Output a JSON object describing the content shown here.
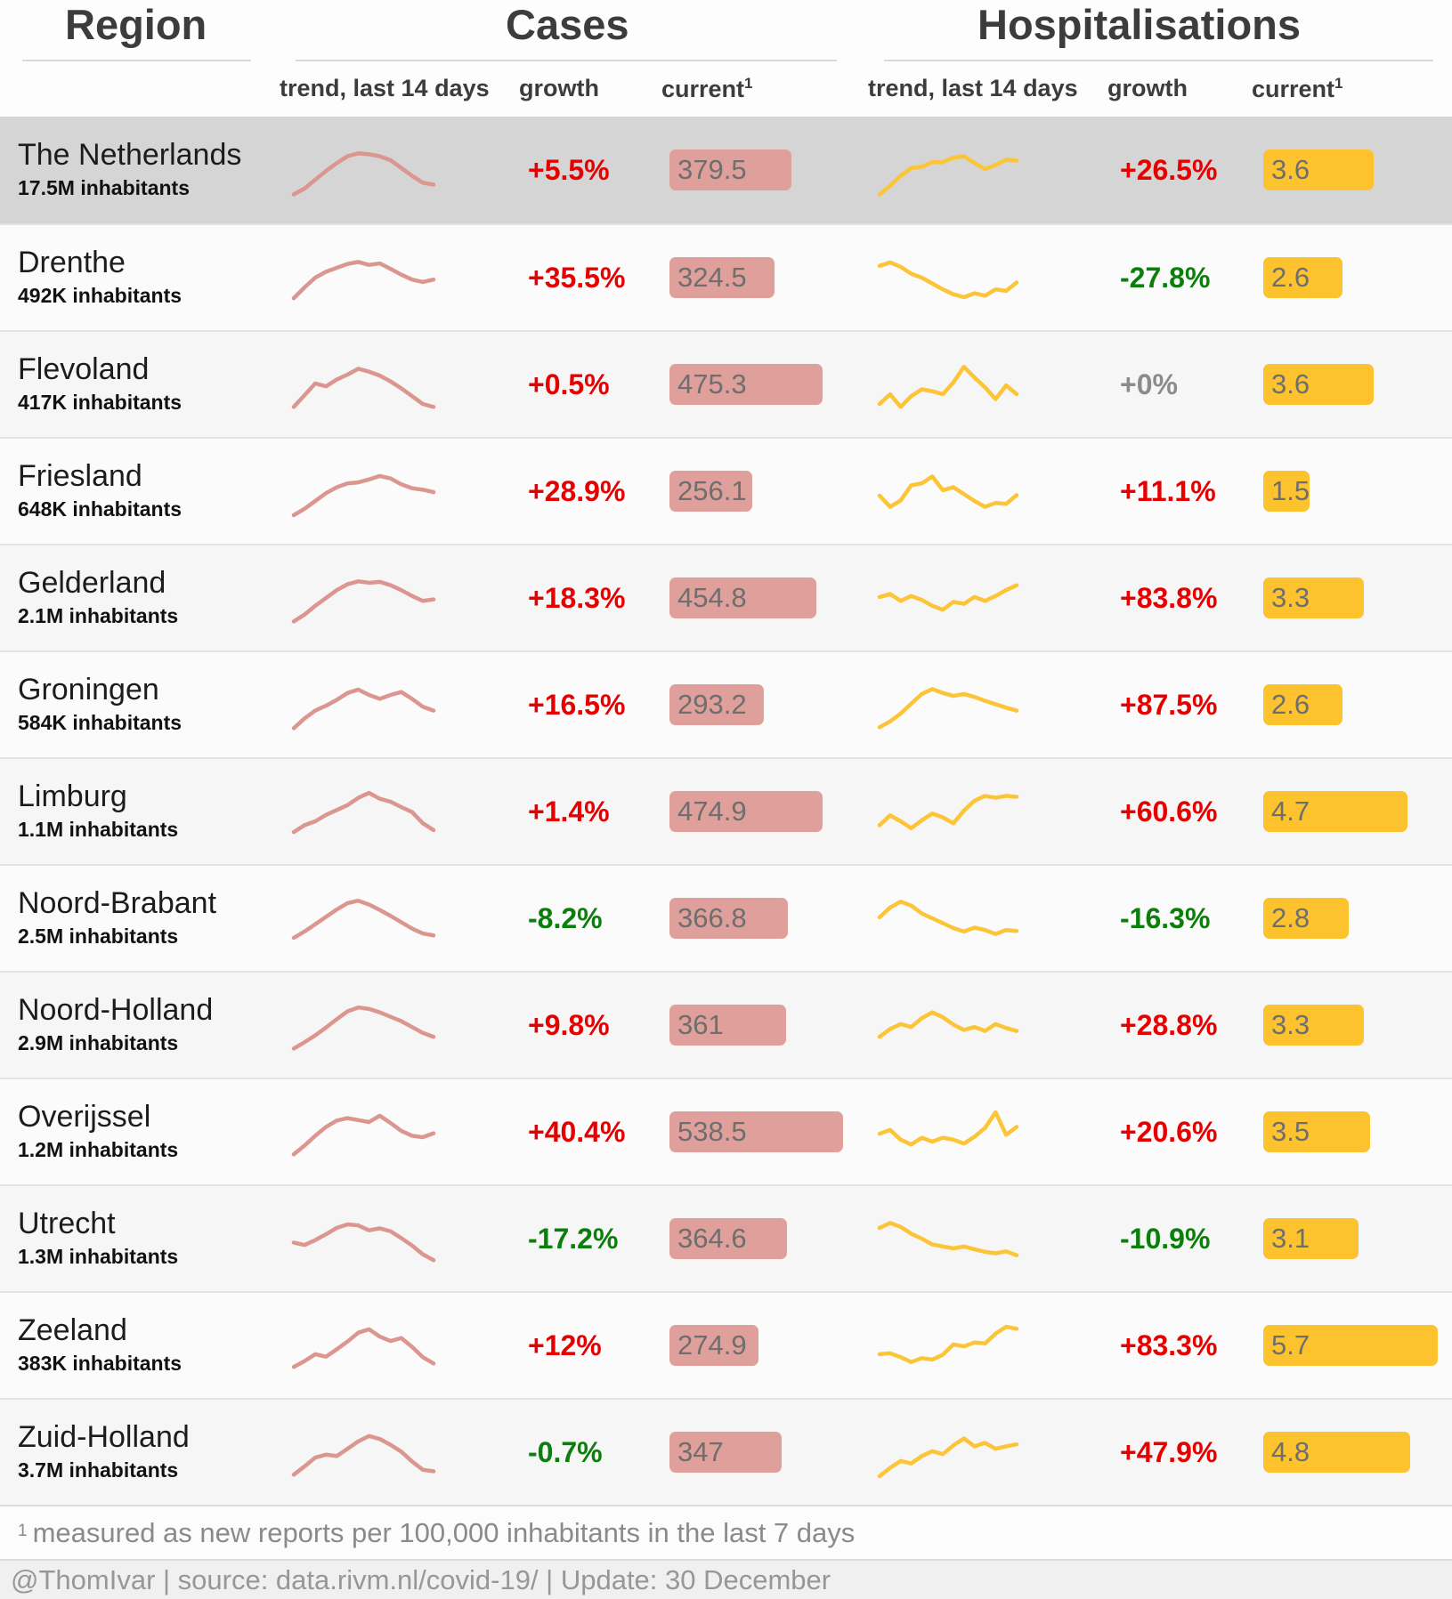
{
  "header": {
    "region_title": "Region",
    "cases_title": "Cases",
    "hosp_title": "Hospitalisations",
    "sub": {
      "trend": "trend, last 14 days",
      "growth": "growth",
      "current": "current",
      "current_sup": "1"
    }
  },
  "footnote": {
    "sup": "1",
    "text": "measured as new reports per 100,000 inhabitants in the last 7 days"
  },
  "credit": "@ThomIvar | source: data.rivm.nl/covid-19/ | Update: 30 December",
  "colors": {
    "cases_accent": "#db968f",
    "cases_bar": "#dfa09b",
    "hosp_accent": "#fcc437",
    "hosp_bar": "#fcc32e",
    "growth_up": "#e70000",
    "growth_down": "#0b7e0b",
    "growth_flat": "#8b8b8b",
    "highlight_row": "#d5d5d5"
  },
  "chart_data": {
    "type": "table",
    "sections": [
      "Region",
      "Cases",
      "Hospitalisations"
    ],
    "columns": [
      "region",
      "inhabitants",
      "cases trend last 14 days",
      "cases growth",
      "cases current (per 100,000, last 7 days)",
      "hospitalisations trend last 14 days",
      "hospitalisations growth",
      "hospitalisations current (per 100,000, last 7 days)"
    ],
    "sparkline_note": "14 daily points per trend, values normalized 0-100",
    "rows": [
      {
        "region": "The Netherlands",
        "inhabitants": "17.5M inhabitants",
        "highlight": true,
        "cases_growth": "+5.5%",
        "cases_growth_color": "red",
        "cases_current": "379.5",
        "hosp_growth": "+26.5%",
        "hosp_growth_color": "red",
        "hosp_current": "3.6",
        "cases_spark": [
          4,
          16,
          34,
          52,
          68,
          82,
          88,
          86,
          82,
          74,
          58,
          42,
          28,
          24
        ],
        "hosp_spark": [
          4,
          22,
          42,
          58,
          60,
          70,
          70,
          79,
          82,
          68,
          56,
          64,
          75,
          73
        ]
      },
      {
        "region": "Drenthe",
        "inhabitants": "492K inhabitants",
        "highlight": false,
        "cases_growth": "+35.5%",
        "cases_growth_color": "red",
        "cases_current": "324.5",
        "hosp_growth": "-27.8%",
        "hosp_growth_color": "green",
        "hosp_current": "2.6",
        "cases_spark": [
          12,
          34,
          54,
          66,
          74,
          82,
          86,
          80,
          83,
          72,
          60,
          50,
          45,
          50
        ],
        "hosp_spark": [
          78,
          85,
          76,
          62,
          54,
          42,
          30,
          20,
          14,
          22,
          17,
          30,
          27,
          44
        ]
      },
      {
        "region": "Flevoland",
        "inhabitants": "417K inhabitants",
        "highlight": false,
        "cases_growth": "+0.5%",
        "cases_growth_color": "red",
        "cases_current": "475.3",
        "hosp_growth": "+0%",
        "hosp_growth_color": "gray",
        "hosp_current": "3.6",
        "cases_spark": [
          8,
          32,
          56,
          50,
          64,
          74,
          86,
          80,
          72,
          60,
          46,
          30,
          14,
          8
        ],
        "hosp_spark": [
          14,
          34,
          8,
          30,
          44,
          40,
          34,
          58,
          90,
          68,
          48,
          24,
          52,
          34
        ]
      },
      {
        "region": "Friesland",
        "inhabitants": "648K inhabitants",
        "highlight": false,
        "cases_growth": "+28.9%",
        "cases_growth_color": "red",
        "cases_current": "256.1",
        "hosp_growth": "+11.1%",
        "hosp_growth_color": "red",
        "hosp_current": "1.5",
        "cases_spark": [
          5,
          18,
          34,
          50,
          62,
          70,
          72,
          78,
          85,
          80,
          68,
          60,
          57,
          52
        ],
        "hosp_spark": [
          45,
          22,
          35,
          66,
          70,
          84,
          56,
          62,
          48,
          34,
          22,
          30,
          28,
          46
        ]
      },
      {
        "region": "Gelderland",
        "inhabitants": "2.1M inhabitants",
        "highlight": false,
        "cases_growth": "+18.3%",
        "cases_growth_color": "red",
        "cases_current": "454.8",
        "hosp_growth": "+83.8%",
        "hosp_growth_color": "red",
        "hosp_current": "3.3",
        "cases_spark": [
          6,
          20,
          38,
          54,
          70,
          82,
          88,
          85,
          87,
          80,
          70,
          58,
          48,
          51
        ],
        "hosp_spark": [
          56,
          62,
          48,
          58,
          50,
          38,
          30,
          46,
          42,
          56,
          48,
          58,
          70,
          80
        ]
      },
      {
        "region": "Groningen",
        "inhabitants": "584K inhabitants",
        "highlight": false,
        "cases_growth": "+16.5%",
        "cases_growth_color": "red",
        "cases_current": "293.2",
        "hosp_growth": "+87.5%",
        "hosp_growth_color": "red",
        "hosp_current": "2.6",
        "cases_spark": [
          6,
          26,
          42,
          52,
          64,
          78,
          85,
          74,
          66,
          74,
          80,
          66,
          50,
          42
        ],
        "hosp_spark": [
          8,
          20,
          36,
          56,
          76,
          86,
          78,
          72,
          76,
          70,
          62,
          55,
          48,
          42
        ]
      },
      {
        "region": "Limburg",
        "inhabitants": "1.1M inhabitants",
        "highlight": false,
        "cases_growth": "+1.4%",
        "cases_growth_color": "red",
        "cases_current": "474.9",
        "hosp_growth": "+60.6%",
        "hosp_growth_color": "red",
        "hosp_current": "4.7",
        "cases_spark": [
          12,
          26,
          34,
          47,
          57,
          67,
          82,
          92,
          80,
          74,
          63,
          53,
          30,
          16
        ],
        "hosp_spark": [
          26,
          46,
          34,
          20,
          36,
          50,
          42,
          30,
          56,
          76,
          86,
          82,
          86,
          84
        ]
      },
      {
        "region": "Noord-Brabant",
        "inhabitants": "2.5M inhabitants",
        "highlight": false,
        "cases_growth": "-8.2%",
        "cases_growth_color": "green",
        "cases_current": "366.8",
        "hosp_growth": "-16.3%",
        "hosp_growth_color": "green",
        "hosp_current": "2.8",
        "cases_spark": [
          14,
          27,
          42,
          57,
          72,
          85,
          90,
          82,
          71,
          59,
          46,
          33,
          23,
          19
        ],
        "hosp_spark": [
          56,
          76,
          88,
          80,
          64,
          54,
          44,
          34,
          27,
          35,
          30,
          22,
          30,
          28
        ]
      },
      {
        "region": "Noord-Holland",
        "inhabitants": "2.9M inhabitants",
        "highlight": false,
        "cases_growth": "+9.8%",
        "cases_growth_color": "red",
        "cases_current": "361",
        "hosp_growth": "+28.8%",
        "hosp_growth_color": "red",
        "hosp_current": "3.3",
        "cases_spark": [
          6,
          19,
          33,
          49,
          66,
          82,
          90,
          87,
          80,
          71,
          62,
          50,
          38,
          30
        ],
        "hosp_spark": [
          30,
          46,
          56,
          50,
          68,
          80,
          70,
          55,
          44,
          50,
          42,
          56,
          48,
          42
        ]
      },
      {
        "region": "Overijssel",
        "inhabitants": "1.2M inhabitants",
        "highlight": false,
        "cases_growth": "+40.4%",
        "cases_growth_color": "red",
        "cases_current": "538.5",
        "hosp_growth": "+20.6%",
        "hosp_growth_color": "red",
        "hosp_current": "3.5",
        "cases_spark": [
          8,
          26,
          46,
          64,
          77,
          82,
          78,
          74,
          87,
          72,
          56,
          46,
          43,
          51
        ],
        "hosp_spark": [
          50,
          58,
          38,
          28,
          42,
          34,
          42,
          38,
          30,
          44,
          62,
          94,
          48,
          64
        ]
      },
      {
        "region": "Utrecht",
        "inhabitants": "1.3M inhabitants",
        "highlight": false,
        "cases_growth": "-17.2%",
        "cases_growth_color": "green",
        "cases_current": "364.6",
        "hosp_growth": "-10.9%",
        "hosp_growth_color": "green",
        "hosp_current": "3.1",
        "cases_spark": [
          46,
          41,
          51,
          63,
          76,
          83,
          81,
          71,
          75,
          69,
          55,
          40,
          22,
          10
        ],
        "hosp_spark": [
          76,
          86,
          78,
          64,
          54,
          42,
          38,
          34,
          38,
          32,
          27,
          24,
          28,
          20
        ]
      },
      {
        "region": "Zeeland",
        "inhabitants": "383K inhabitants",
        "highlight": false,
        "cases_growth": "+12%",
        "cases_growth_color": "red",
        "cases_current": "274.9",
        "hosp_growth": "+83.3%",
        "hosp_growth_color": "red",
        "hosp_current": "5.7",
        "cases_spark": [
          10,
          22,
          36,
          31,
          46,
          62,
          80,
          87,
          72,
          63,
          69,
          51,
          30,
          17
        ],
        "hosp_spark": [
          36,
          38,
          30,
          20,
          28,
          25,
          35,
          56,
          52,
          60,
          58,
          78,
          92,
          88
        ]
      },
      {
        "region": "Zuid-Holland",
        "inhabitants": "3.7M inhabitants",
        "highlight": false,
        "cases_growth": "-0.7%",
        "cases_growth_color": "green",
        "cases_current": "347",
        "hosp_growth": "+47.9%",
        "hosp_growth_color": "red",
        "hosp_current": "4.8",
        "cases_spark": [
          8,
          25,
          43,
          49,
          46,
          61,
          76,
          87,
          81,
          69,
          55,
          35,
          18,
          15
        ],
        "hosp_spark": [
          5,
          22,
          36,
          31,
          46,
          56,
          50,
          68,
          82,
          66,
          73,
          61,
          66,
          70
        ]
      }
    ]
  }
}
